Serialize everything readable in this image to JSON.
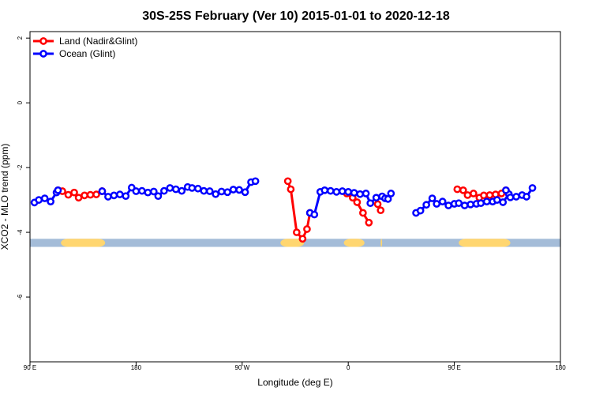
{
  "chart_data": {
    "type": "line",
    "title": "30S-25S February (Ver 10)   2015-01-01 to 2020-12-18",
    "xlabel": "Longitude (deg E)",
    "ylabel": "XCO2 - MLO trend (ppm)",
    "xlim": [
      90,
      450
    ],
    "ylim": [
      -8,
      2.2
    ],
    "x_ticks": [
      {
        "value": 90,
        "label": "90 E"
      },
      {
        "value": 162,
        "label": "180"
      },
      {
        "value": 234,
        "label": "90 W"
      },
      {
        "value": 306,
        "label": "0"
      },
      {
        "value": 378,
        "label": "90 E"
      },
      {
        "value": 450,
        "label": "180"
      }
    ],
    "y_ticks": [
      {
        "value": 2,
        "label": "2"
      },
      {
        "value": 0,
        "label": "0"
      },
      {
        "value": -2,
        "label": "-2"
      },
      {
        "value": -4,
        "label": "-4"
      },
      {
        "value": -6,
        "label": "-6"
      }
    ],
    "legend": {
      "position": "top-left",
      "entries": [
        {
          "label": "Land (Nadir&Glint)",
          "color": "#ff0000"
        },
        {
          "label": "Ocean (Glint)",
          "color": "#0000ff"
        }
      ]
    },
    "colors": {
      "land": "#ff0000",
      "ocean": "#0000ff",
      "band_ocean": "#a4bcd8",
      "band_land": "#ffd670"
    },
    "surface_band": {
      "y_top": -4.2,
      "y_bottom": -4.45,
      "land_ranges": [
        [
          111,
          141
        ],
        [
          260,
          276
        ],
        [
          303,
          317
        ],
        [
          328,
          329
        ],
        [
          381,
          416
        ]
      ]
    },
    "series": [
      {
        "name": "Land (Nadir&Glint)",
        "color": "#ff0000",
        "segments": [
          [
            [
              109,
              -2.7
            ],
            [
              112,
              -2.73
            ],
            [
              116,
              -2.84
            ],
            [
              120,
              -2.77
            ],
            [
              123,
              -2.93
            ],
            [
              127,
              -2.86
            ],
            [
              131,
              -2.84
            ],
            [
              135,
              -2.83
            ],
            [
              139,
              -2.73
            ]
          ],
          [
            [
              265,
              -2.42
            ],
            [
              267,
              -2.67
            ],
            [
              271,
              -4.0
            ],
            [
              275,
              -4.2
            ],
            [
              278,
              -3.9
            ],
            [
              280,
              -3.4
            ]
          ],
          [
            [
              305,
              -2.8
            ],
            [
              309,
              -2.93
            ],
            [
              312,
              -3.07
            ],
            [
              316,
              -3.4
            ],
            [
              320,
              -3.7
            ]
          ],
          [
            [
              326,
              -3.13
            ],
            [
              328,
              -3.32
            ]
          ],
          [
            [
              380,
              -2.67
            ],
            [
              384,
              -2.7
            ],
            [
              387,
              -2.85
            ],
            [
              391,
              -2.8
            ],
            [
              395,
              -2.93
            ],
            [
              398,
              -2.86
            ],
            [
              402,
              -2.85
            ],
            [
              406,
              -2.83
            ],
            [
              410,
              -2.8
            ],
            [
              413,
              -2.7
            ]
          ]
        ]
      },
      {
        "name": "Ocean (Glint)",
        "color": "#0000ff",
        "segments": [
          [
            [
              93,
              -3.08
            ],
            [
              96,
              -3.0
            ],
            [
              100,
              -2.95
            ],
            [
              104,
              -3.05
            ],
            [
              108,
              -2.77
            ],
            [
              109,
              -2.7
            ]
          ],
          [
            [
              139,
              -2.73
            ],
            [
              143,
              -2.9
            ],
            [
              147,
              -2.86
            ],
            [
              151,
              -2.83
            ],
            [
              155,
              -2.88
            ],
            [
              159,
              -2.62
            ],
            [
              162,
              -2.73
            ],
            [
              166,
              -2.72
            ],
            [
              170,
              -2.77
            ],
            [
              174,
              -2.74
            ],
            [
              177,
              -2.88
            ],
            [
              181,
              -2.72
            ],
            [
              185,
              -2.63
            ],
            [
              189,
              -2.67
            ],
            [
              193,
              -2.72
            ],
            [
              197,
              -2.6
            ],
            [
              200,
              -2.63
            ],
            [
              204,
              -2.65
            ],
            [
              208,
              -2.72
            ],
            [
              212,
              -2.73
            ],
            [
              216,
              -2.82
            ],
            [
              220,
              -2.74
            ],
            [
              224,
              -2.76
            ],
            [
              228,
              -2.68
            ],
            [
              232,
              -2.69
            ],
            [
              236,
              -2.76
            ],
            [
              240,
              -2.45
            ],
            [
              243,
              -2.42
            ]
          ],
          [
            [
              280,
              -3.4
            ],
            [
              283,
              -3.45
            ],
            [
              287,
              -2.75
            ],
            [
              290,
              -2.7
            ],
            [
              294,
              -2.72
            ],
            [
              298,
              -2.75
            ],
            [
              302,
              -2.73
            ],
            [
              306,
              -2.75
            ],
            [
              310,
              -2.78
            ],
            [
              314,
              -2.82
            ],
            [
              318,
              -2.8
            ],
            [
              321,
              -3.1
            ],
            [
              325,
              -2.93
            ],
            [
              329,
              -2.89
            ],
            [
              331,
              -2.95
            ],
            [
              333,
              -2.97
            ],
            [
              335,
              -2.8
            ]
          ],
          [
            [
              352,
              -3.4
            ],
            [
              355,
              -3.33
            ],
            [
              359,
              -3.15
            ],
            [
              363,
              -2.95
            ],
            [
              366,
              -3.12
            ],
            [
              370,
              -3.05
            ],
            [
              374,
              -3.17
            ],
            [
              378,
              -3.12
            ],
            [
              381,
              -3.1
            ],
            [
              385,
              -3.17
            ],
            [
              389,
              -3.14
            ],
            [
              393,
              -3.12
            ],
            [
              396,
              -3.1
            ],
            [
              400,
              -3.05
            ],
            [
              404,
              -3.05
            ],
            [
              407,
              -3.0
            ],
            [
              411,
              -3.07
            ],
            [
              415,
              -2.82
            ]
          ],
          [
            [
              413,
              -2.7
            ],
            [
              416,
              -2.92
            ],
            [
              420,
              -2.9
            ],
            [
              424,
              -2.85
            ],
            [
              427,
              -2.9
            ],
            [
              431,
              -2.63
            ]
          ]
        ]
      }
    ]
  }
}
